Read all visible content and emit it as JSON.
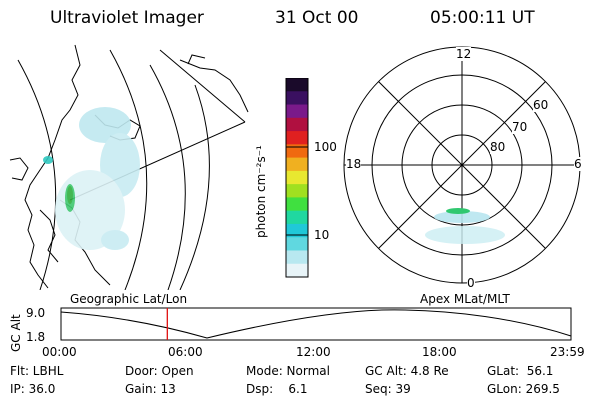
{
  "header": {
    "title": "Ultraviolet Imager",
    "date": "31 Oct 00",
    "time": "05:00:11 UT"
  },
  "colorbar": {
    "unit": "photon cm⁻²s⁻¹",
    "ticks": [
      "100",
      "10"
    ],
    "colors": [
      "#1a0a2a",
      "#3a1060",
      "#7a1a8a",
      "#b01040",
      "#e02020",
      "#f06a10",
      "#f0b020",
      "#e8e830",
      "#a0e020",
      "#40e040",
      "#20d8a0",
      "#20c8d8",
      "#60d8e0",
      "#b8e8f0",
      "#e8f4f8"
    ]
  },
  "polar_plot": {
    "clock_labels": {
      "top": "12",
      "left": "18",
      "right": "6",
      "bottom": "0"
    },
    "lat_labels": [
      "60",
      "70",
      "80"
    ]
  },
  "timeline": {
    "left_label": "Geographic Lat/Lon",
    "right_label": "Apex MLat/MLT",
    "yaxis_title": "GC Alt",
    "y_max": "9.0",
    "y_min": "1.8",
    "x_ticks": [
      "00:00",
      "06:00",
      "12:00",
      "18:00",
      "23:59"
    ],
    "current_time_hours": 5.003
  },
  "info": {
    "flt": "Flt: LBHL",
    "ip": "IP: 36.0",
    "door": "Door: Open",
    "gain": "Gain: 13",
    "mode": "Mode: Normal",
    "dsp": "Dsp:    6.1",
    "gcalt": "GC Alt: 4.8 Re",
    "seq": "Seq: 39",
    "glat": "GLat:  56.1",
    "glon": "GLon: 269.5"
  }
}
